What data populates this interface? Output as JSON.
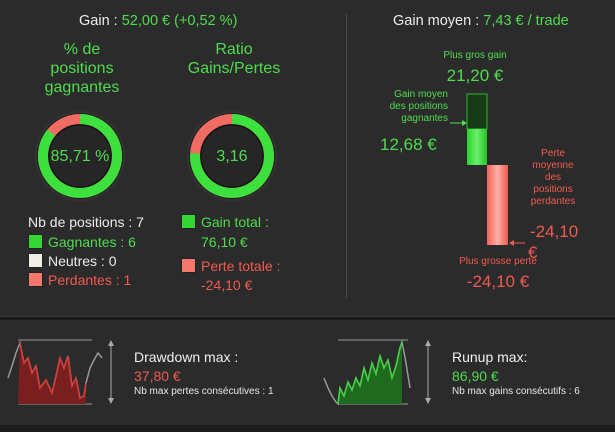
{
  "summary": {
    "gain_label": "Gain :",
    "gain_value": "52,00 € (+0,52 %)",
    "avg_gain_label": "Gain moyen :",
    "avg_gain_value": "7,43 € / trade"
  },
  "rings": {
    "winning": {
      "title_line1": "% de",
      "title_line2": "positions",
      "title_line3": "gagnantes",
      "value": "85,71 %",
      "fraction": 0.8571
    },
    "ratio": {
      "title_line1": "Ratio",
      "title_line2": "Gains/Pertes",
      "value": "3,16",
      "fraction": 0.76
    }
  },
  "positions": {
    "count_label": "Nb de positions : 7",
    "winning_label": "Gagnantes : 6",
    "neutral_label": "Neutres : 0",
    "losing_label": "Perdantes : 1"
  },
  "totals": {
    "gain_total_label": "Gain total :",
    "gain_total_value": "76,10 €",
    "loss_total_label": "Perte totale :",
    "loss_total_value": "-24,10 €"
  },
  "bars": {
    "max_gain_label": "Plus gros gain",
    "max_gain_value": "21,20 €",
    "avg_win_label_1": "Gain moyen",
    "avg_win_label_2": "des positions",
    "avg_win_label_3": "gagnantes",
    "avg_win_value": "12,68 €",
    "avg_loss_label_1": "Perte",
    "avg_loss_label_2": "moyenne",
    "avg_loss_label_3": "des",
    "avg_loss_label_4": "positions",
    "avg_loss_label_5": "perdantes",
    "avg_loss_value_1": "-24,10",
    "avg_loss_value_2": "€",
    "max_loss_label": "Plus grosse perte",
    "max_loss_value": "-24,10 €"
  },
  "drawdown": {
    "title": "Drawdown max :",
    "value": "37,80 €",
    "note": "Nb max pertes consécutives : 1"
  },
  "runup": {
    "title": "Runup max:",
    "value": "86,90 €",
    "note": "Nb max gains consécutifs : 6"
  },
  "colors": {
    "green": "#4fdc4f",
    "red": "#f05a50",
    "background": "#2b2b2b"
  }
}
